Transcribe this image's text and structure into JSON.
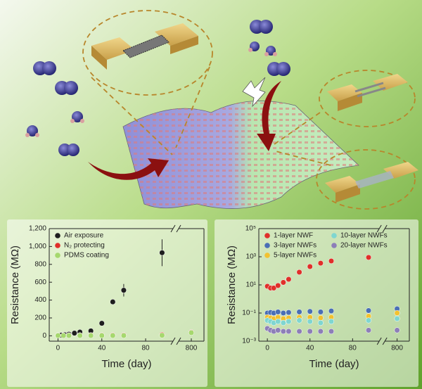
{
  "chart_data": [
    {
      "type": "scatter",
      "xlabel": "Time (day)",
      "ylabel": "Resistance (MΩ)",
      "xlim": [
        -8,
        830
      ],
      "xbreak": [
        105,
        770
      ],
      "xticks": [
        0,
        40,
        80,
        800
      ],
      "ylim": [
        -60,
        1200
      ],
      "yticks": [
        0,
        200,
        400,
        600,
        800,
        {
          "value": 1000,
          "label": "1,000"
        },
        {
          "value": 1200,
          "label": "1,200"
        }
      ],
      "log": false,
      "legend": "upper left",
      "series": [
        {
          "name": "Air exposure",
          "color": "#1e1e1e",
          "x": [
            0,
            3,
            6,
            10,
            15,
            20,
            30,
            40,
            50,
            60,
            95
          ],
          "values": [
            5,
            8,
            12,
            18,
            30,
            42,
            55,
            140,
            380,
            510,
            930
          ],
          "errors": [
            null,
            null,
            null,
            null,
            null,
            null,
            null,
            null,
            30,
            70,
            150
          ]
        },
        {
          "name": "N₂ protecting",
          "color": "#e0302a",
          "x": [
            0,
            5,
            10,
            20,
            30,
            40,
            50,
            60,
            95,
            800
          ],
          "values": [
            5,
            5,
            6,
            6,
            7,
            7,
            8,
            8,
            12,
            40
          ]
        },
        {
          "name": "PDMS coating",
          "color": "#a6d86e",
          "x": [
            0,
            5,
            10,
            20,
            30,
            40,
            50,
            60,
            95,
            800
          ],
          "values": [
            3,
            3,
            3,
            3,
            3,
            3,
            3,
            3,
            5,
            35
          ]
        }
      ]
    },
    {
      "type": "scatter",
      "xlabel": "Time (day)",
      "ylabel": "Resistance (MΩ)",
      "xlim": [
        -8,
        830
      ],
      "xbreak": [
        105,
        770
      ],
      "xticks": [
        0,
        40,
        80,
        800
      ],
      "ylim": [
        0.001,
        100000
      ],
      "yticks": [
        {
          "value": 0.001,
          "label": "10⁻³"
        },
        {
          "value": 0.1,
          "label": "10⁻¹"
        },
        {
          "value": 10,
          "label": "10¹"
        },
        {
          "value": 1000,
          "label": "10³"
        },
        {
          "value": 100000,
          "label": "10⁵"
        }
      ],
      "log": true,
      "legend": "upper left",
      "series": [
        {
          "name": "1-layer NWF",
          "color": "#e0302a",
          "x": [
            0,
            3,
            6,
            10,
            15,
            20,
            30,
            40,
            50,
            60,
            95
          ],
          "values": [
            8,
            6,
            6,
            9,
            15,
            25,
            80,
            200,
            350,
            500,
            900
          ]
        },
        {
          "name": "3-layer NWFs",
          "color": "#4a6fb5",
          "x": [
            0,
            3,
            6,
            10,
            15,
            20,
            30,
            40,
            50,
            60,
            95,
            800
          ],
          "values": [
            0.1,
            0.11,
            0.1,
            0.12,
            0.1,
            0.11,
            0.12,
            0.13,
            0.12,
            0.14,
            0.15,
            0.2
          ]
        },
        {
          "name": "5-layer NWFs",
          "color": "#f2c230",
          "x": [
            0,
            3,
            6,
            10,
            15,
            20,
            30,
            40,
            50,
            60,
            95,
            800
          ],
          "values": [
            0.05,
            0.045,
            0.04,
            0.05,
            0.04,
            0.045,
            0.05,
            0.05,
            0.045,
            0.05,
            0.06,
            0.1
          ]
        },
        {
          "name": "10-layer NWFs",
          "color": "#7fd6d0",
          "x": [
            0,
            3,
            6,
            10,
            15,
            20,
            30,
            40,
            50,
            60,
            95,
            800
          ],
          "values": [
            0.03,
            0.025,
            0.02,
            0.025,
            0.02,
            0.025,
            0.03,
            0.025,
            0.02,
            0.025,
            0.03,
            0.04
          ]
        },
        {
          "name": "20-layer NWFs",
          "color": "#8d7fb8",
          "x": [
            0,
            3,
            6,
            10,
            15,
            20,
            30,
            40,
            50,
            60,
            95,
            800
          ],
          "values": [
            0.008,
            0.006,
            0.005,
            0.006,
            0.005,
            0.005,
            0.005,
            0.005,
            0.005,
            0.005,
            0.006,
            0.006
          ]
        }
      ]
    }
  ]
}
